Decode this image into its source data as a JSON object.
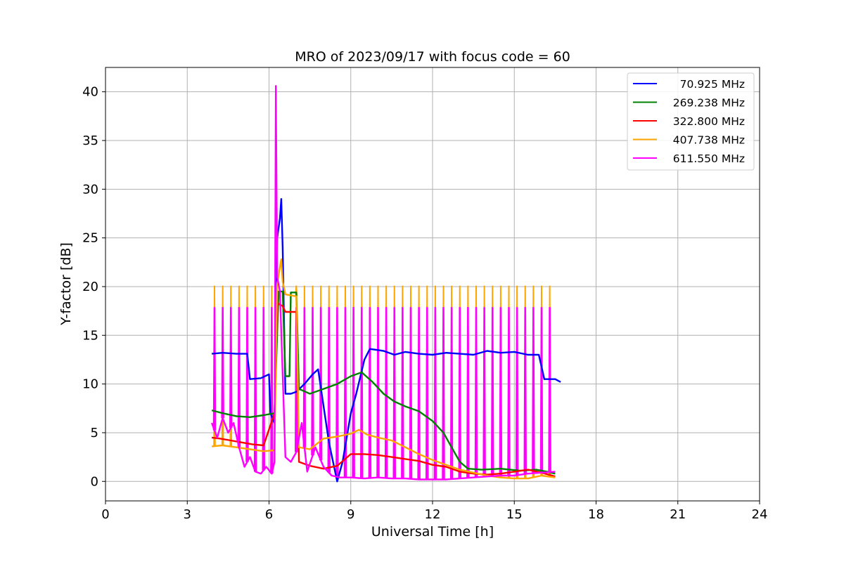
{
  "chart_data": {
    "type": "line",
    "title": "MRO of 2023/09/17 with focus code = 60",
    "xlabel": "Universal Time [h]",
    "ylabel": "Y-factor [dB]",
    "xlim": [
      0,
      24
    ],
    "ylim": [
      -2,
      42.5
    ],
    "xticks": [
      0,
      3,
      6,
      9,
      12,
      15,
      18,
      21,
      24
    ],
    "yticks": [
      0,
      5,
      10,
      15,
      20,
      25,
      30,
      35,
      40
    ],
    "grid": true,
    "legend_position": "top-right",
    "series": [
      {
        "name": "70.925 MHz",
        "color": "#0000ff",
        "points": [
          [
            3.9,
            13.1
          ],
          [
            4.3,
            13.2
          ],
          [
            4.8,
            13.1
          ],
          [
            5.2,
            13.1
          ],
          [
            5.3,
            10.5
          ],
          [
            5.7,
            10.6
          ],
          [
            6.0,
            11.0
          ],
          [
            6.05,
            7.0
          ],
          [
            6.2,
            6.0
          ],
          [
            6.3,
            25.0
          ],
          [
            6.4,
            27.0
          ],
          [
            6.45,
            29.0
          ],
          [
            6.5,
            24.0
          ],
          [
            6.6,
            9.0
          ],
          [
            6.8,
            9.0
          ],
          [
            7.0,
            9.2
          ],
          [
            7.3,
            10.0
          ],
          [
            7.6,
            11.0
          ],
          [
            7.8,
            11.5
          ],
          [
            8.2,
            4.0
          ],
          [
            8.5,
            0.0
          ],
          [
            8.7,
            2.0
          ],
          [
            9.0,
            7.0
          ],
          [
            9.2,
            9.0
          ],
          [
            9.5,
            12.5
          ],
          [
            9.7,
            13.6
          ],
          [
            10.2,
            13.4
          ],
          [
            10.6,
            13.0
          ],
          [
            11.0,
            13.3
          ],
          [
            11.5,
            13.1
          ],
          [
            12.0,
            13.0
          ],
          [
            12.5,
            13.2
          ],
          [
            13.0,
            13.1
          ],
          [
            13.5,
            13.0
          ],
          [
            14.0,
            13.4
          ],
          [
            14.5,
            13.2
          ],
          [
            15.0,
            13.3
          ],
          [
            15.5,
            13.0
          ],
          [
            15.9,
            13.0
          ],
          [
            16.1,
            10.5
          ],
          [
            16.5,
            10.5
          ],
          [
            16.7,
            10.2
          ]
        ]
      },
      {
        "name": "269.238 MHz",
        "color": "#008000",
        "points": [
          [
            3.9,
            7.3
          ],
          [
            4.3,
            7.0
          ],
          [
            4.8,
            6.7
          ],
          [
            5.3,
            6.6
          ],
          [
            5.8,
            6.8
          ],
          [
            6.2,
            7.0
          ],
          [
            6.35,
            19.5
          ],
          [
            6.5,
            19.5
          ],
          [
            6.6,
            10.8
          ],
          [
            6.75,
            10.8
          ],
          [
            6.8,
            19.4
          ],
          [
            7.0,
            19.4
          ],
          [
            7.1,
            9.5
          ],
          [
            7.5,
            9.0
          ],
          [
            8.0,
            9.5
          ],
          [
            8.5,
            10.0
          ],
          [
            9.0,
            10.8
          ],
          [
            9.4,
            11.2
          ],
          [
            9.8,
            10.2
          ],
          [
            10.2,
            9.0
          ],
          [
            10.6,
            8.2
          ],
          [
            11.0,
            7.7
          ],
          [
            11.5,
            7.2
          ],
          [
            12.0,
            6.2
          ],
          [
            12.4,
            5.0
          ],
          [
            12.7,
            3.5
          ],
          [
            13.0,
            2.0
          ],
          [
            13.3,
            1.3
          ],
          [
            13.8,
            1.2
          ],
          [
            14.5,
            1.3
          ],
          [
            15.2,
            1.1
          ],
          [
            15.8,
            1.2
          ],
          [
            16.2,
            1.0
          ],
          [
            16.5,
            0.8
          ]
        ]
      },
      {
        "name": "322.800 MHz",
        "color": "#ff0000",
        "points": [
          [
            3.9,
            4.5
          ],
          [
            4.2,
            4.4
          ],
          [
            4.6,
            4.2
          ],
          [
            5.0,
            4.0
          ],
          [
            5.4,
            3.8
          ],
          [
            5.8,
            3.7
          ],
          [
            6.2,
            7.0
          ],
          [
            6.3,
            18.3
          ],
          [
            6.5,
            18.0
          ],
          [
            6.6,
            17.4
          ],
          [
            7.0,
            17.4
          ],
          [
            7.1,
            2.0
          ],
          [
            7.5,
            1.6
          ],
          [
            8.0,
            1.3
          ],
          [
            8.5,
            1.6
          ],
          [
            9.0,
            2.8
          ],
          [
            9.5,
            2.8
          ],
          [
            10.0,
            2.7
          ],
          [
            10.5,
            2.5
          ],
          [
            11.0,
            2.3
          ],
          [
            11.5,
            2.1
          ],
          [
            12.0,
            1.7
          ],
          [
            12.5,
            1.5
          ],
          [
            13.0,
            1.0
          ],
          [
            13.5,
            0.8
          ],
          [
            14.0,
            0.7
          ],
          [
            14.5,
            0.8
          ],
          [
            15.0,
            1.0
          ],
          [
            15.5,
            1.2
          ],
          [
            16.0,
            0.9
          ],
          [
            16.5,
            0.5
          ]
        ]
      },
      {
        "name": "407.738 MHz",
        "color": "#ffa500",
        "points": [
          [
            3.9,
            3.6
          ],
          [
            4.3,
            3.7
          ],
          [
            4.8,
            3.5
          ],
          [
            5.3,
            3.3
          ],
          [
            5.8,
            3.1
          ],
          [
            6.2,
            3.2
          ],
          [
            6.3,
            20.3
          ],
          [
            6.45,
            22.8
          ],
          [
            6.5,
            20.5
          ],
          [
            6.6,
            19.2
          ],
          [
            7.0,
            19.0
          ],
          [
            7.1,
            3.5
          ],
          [
            7.5,
            3.3
          ],
          [
            8.0,
            4.4
          ],
          [
            8.5,
            4.6
          ],
          [
            9.0,
            4.9
          ],
          [
            9.3,
            5.3
          ],
          [
            9.6,
            4.8
          ],
          [
            10.0,
            4.5
          ],
          [
            10.5,
            4.2
          ],
          [
            11.0,
            3.5
          ],
          [
            11.5,
            2.8
          ],
          [
            12.0,
            2.2
          ],
          [
            12.5,
            1.7
          ],
          [
            13.0,
            1.2
          ],
          [
            13.5,
            0.9
          ],
          [
            14.0,
            0.6
          ],
          [
            14.5,
            0.4
          ],
          [
            15.0,
            0.3
          ],
          [
            15.5,
            0.3
          ],
          [
            16.0,
            0.6
          ],
          [
            16.5,
            0.4
          ]
        ]
      },
      {
        "name": "611.550 MHz",
        "color": "#ff00ff",
        "points": [
          [
            3.9,
            6.0
          ],
          [
            4.1,
            4.5
          ],
          [
            4.3,
            6.5
          ],
          [
            4.5,
            5.0
          ],
          [
            4.7,
            6.0
          ],
          [
            4.9,
            3.5
          ],
          [
            5.1,
            1.5
          ],
          [
            5.3,
            2.5
          ],
          [
            5.5,
            1.0
          ],
          [
            5.7,
            0.8
          ],
          [
            5.9,
            1.5
          ],
          [
            6.1,
            0.8
          ],
          [
            6.2,
            2.0
          ],
          [
            6.25,
            40.6
          ],
          [
            6.3,
            21.0
          ],
          [
            6.4,
            19.5
          ],
          [
            6.6,
            2.5
          ],
          [
            6.8,
            2.0
          ],
          [
            7.0,
            3.0
          ],
          [
            7.2,
            6.0
          ],
          [
            7.4,
            1.0
          ],
          [
            7.7,
            3.5
          ],
          [
            8.0,
            1.5
          ],
          [
            8.3,
            0.6
          ],
          [
            8.6,
            0.4
          ],
          [
            9.0,
            0.4
          ],
          [
            9.5,
            0.3
          ],
          [
            10.0,
            0.4
          ],
          [
            10.5,
            0.3
          ],
          [
            11.0,
            0.3
          ],
          [
            11.5,
            0.2
          ],
          [
            12.0,
            0.2
          ],
          [
            12.5,
            0.2
          ],
          [
            13.0,
            0.3
          ],
          [
            13.5,
            0.4
          ],
          [
            14.0,
            0.5
          ],
          [
            14.5,
            0.6
          ],
          [
            15.0,
            0.6
          ],
          [
            15.5,
            0.8
          ],
          [
            16.0,
            0.9
          ],
          [
            16.5,
            1.0
          ]
        ]
      }
    ],
    "calibration_spikes": {
      "start": 4.0,
      "end": 16.5,
      "spacing": 0.3,
      "skip": [
        [
          6.2,
          6.95
        ]
      ],
      "peak_orange": 20.1,
      "peak_magenta": 17.9
    }
  }
}
